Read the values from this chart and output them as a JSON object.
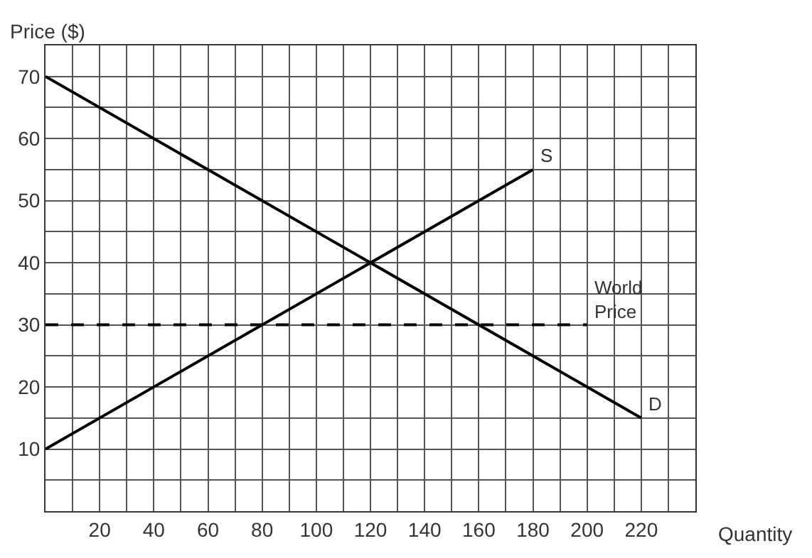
{
  "chart_data": {
    "type": "line",
    "xlabel": "Quantity",
    "ylabel": "Price ($)",
    "xlim": [
      0,
      240
    ],
    "ylim": [
      0,
      75
    ],
    "xticks": [
      {
        "value": 10,
        "label": null
      },
      20,
      {
        "value": 30,
        "label": null
      },
      40,
      {
        "value": 50,
        "label": null
      },
      60,
      {
        "value": 70,
        "label": null
      },
      80,
      {
        "value": 90,
        "label": null
      },
      100,
      {
        "value": 110,
        "label": null
      },
      120,
      {
        "value": 130,
        "label": null
      },
      140,
      {
        "value": 150,
        "label": null
      },
      160,
      {
        "value": 170,
        "label": null
      },
      180,
      {
        "value": 190,
        "label": null
      },
      200,
      {
        "value": 210,
        "label": null
      },
      220,
      {
        "value": 230,
        "label": null
      }
    ],
    "yticks": [
      {
        "value": 5,
        "label": null
      },
      10,
      {
        "value": 15,
        "label": null
      },
      20,
      {
        "value": 25,
        "label": null
      },
      30,
      {
        "value": 35,
        "label": null
      },
      40,
      {
        "value": 45,
        "label": null
      },
      50,
      {
        "value": 55,
        "label": null
      },
      60,
      {
        "value": 65,
        "label": null
      },
      70
    ],
    "grid": true,
    "legend": false,
    "marker": "none",
    "series": [
      {
        "name": "S",
        "color": "#000000",
        "x": [
          0,
          180
        ],
        "values": [
          10,
          55
        ],
        "line_style": "solid"
      },
      {
        "name": "D",
        "color": "#000000",
        "x": [
          0,
          220
        ],
        "values": [
          70,
          15
        ],
        "line_style": "solid"
      },
      {
        "name": "World\nPrice",
        "color": "#000000",
        "x": [
          0,
          200
        ],
        "values": [
          30,
          30
        ],
        "line_style": "dashed"
      }
    ]
  }
}
